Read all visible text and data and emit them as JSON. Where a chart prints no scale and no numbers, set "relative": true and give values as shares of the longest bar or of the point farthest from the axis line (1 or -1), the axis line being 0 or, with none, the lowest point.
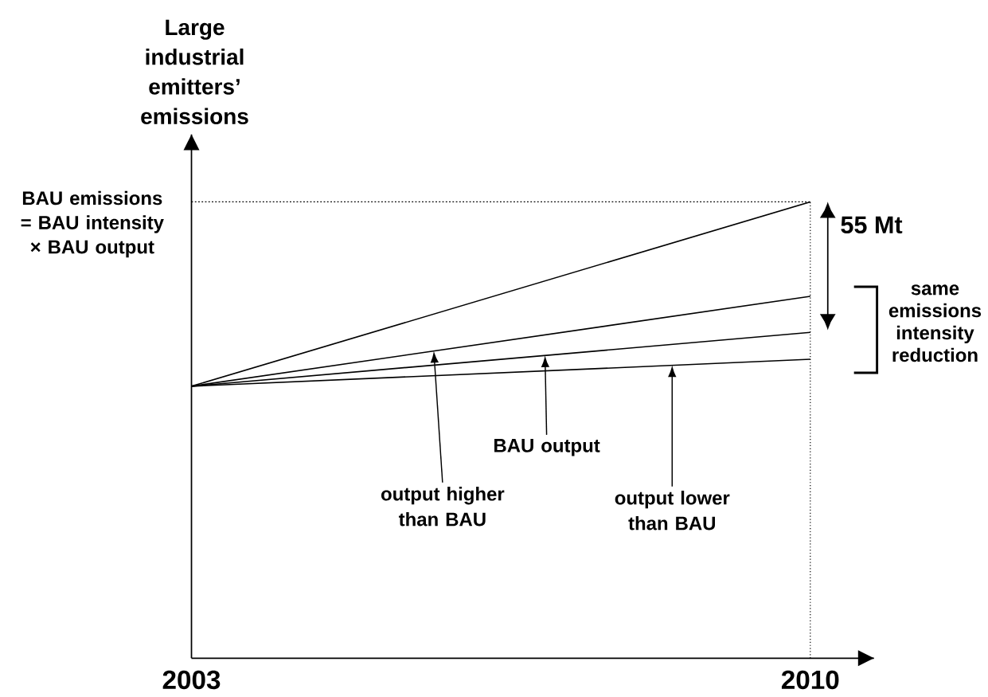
{
  "chart_data": {
    "type": "line",
    "relative": true,
    "ylabel": "Large industrial emitters’ emissions",
    "x": [
      2003,
      2010
    ],
    "xlim": [
      2003,
      2010.72
    ],
    "xticks": [
      2003,
      2010
    ],
    "series": [
      {
        "color": "#000000",
        "values": [
          0.596,
          1
        ]
      },
      {
        "color": "#000000",
        "values": [
          0.596,
          0.793
        ]
      },
      {
        "color": "#000000",
        "values": [
          0.596,
          0.714
        ]
      },
      {
        "color": "#000000",
        "values": [
          0.596,
          0.655
        ]
      }
    ],
    "ref_lines": [
      {
        "axis": "y",
        "value": 1,
        "label": "BAU emissions = BAU intensity × BAU output",
        "line_style": "dotted"
      },
      {
        "axis": "x",
        "value": 2010,
        "line_style": "dotted"
      }
    ],
    "annotations": [
      "55 Mt",
      "same emissions intensity reduction",
      "output higher than BAU",
      "BAU output",
      "output lower than BAU"
    ]
  }
}
